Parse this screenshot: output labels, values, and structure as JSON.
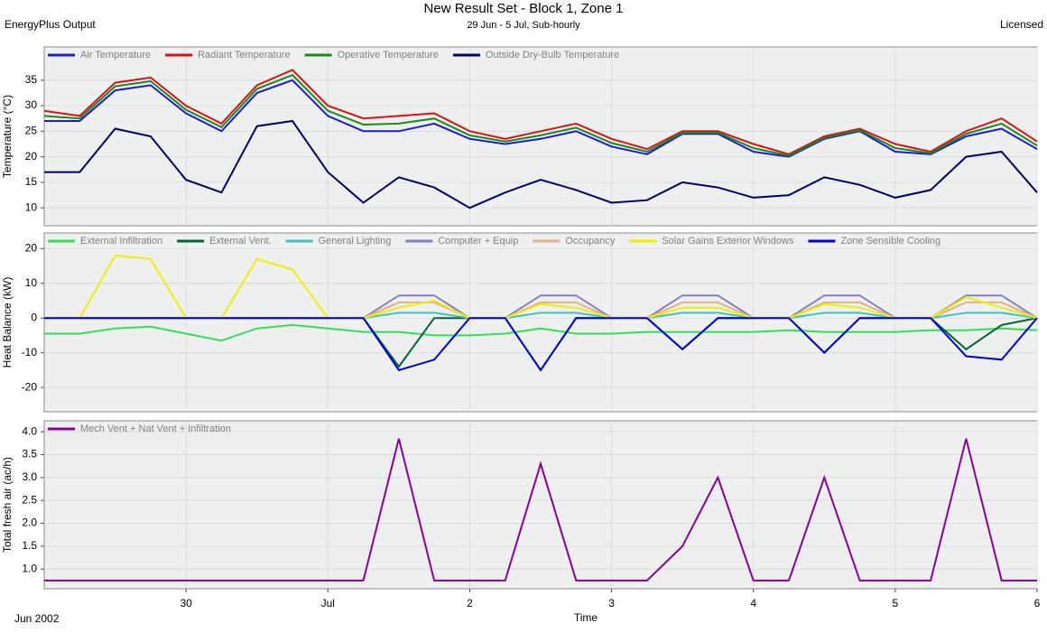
{
  "header": {
    "title": "New Result Set - Block 1, Zone 1",
    "subtitle": "29 Jun - 5 Jul, Sub-hourly",
    "source": "EnergyPlus Output",
    "license": "Licensed"
  },
  "chart_data": [
    {
      "type": "line",
      "ylabel": "Temperature (°C)",
      "legend": "top-left",
      "grid": true,
      "x": [
        29,
        29.25,
        29.5,
        29.75,
        30,
        30.25,
        30.5,
        30.75,
        31,
        31.25,
        31.5,
        31.75,
        32,
        32.25,
        32.5,
        32.75,
        33,
        33.25,
        33.5,
        33.75,
        34,
        34.25,
        34.5,
        34.75,
        35,
        35.25,
        35.5,
        35.75,
        36
      ],
      "xlim": [
        29,
        36
      ],
      "xticks": [
        30,
        31,
        32,
        33,
        34,
        35,
        36
      ],
      "ylim": [
        6.5,
        41.5
      ],
      "yticks": [
        10,
        15,
        20,
        25,
        30,
        35
      ],
      "series": [
        {
          "name": "Air Temperature",
          "color": "#1c1ccc",
          "values": [
            27,
            27,
            33,
            34,
            28.5,
            25,
            32.5,
            35,
            28,
            25,
            25,
            26.5,
            23.5,
            22.5,
            23.5,
            25,
            22,
            20.5,
            24.5,
            24.5,
            21,
            20,
            23.5,
            25,
            21,
            20.5,
            24,
            25.5,
            21.5
          ]
        },
        {
          "name": "Radiant Temperature",
          "color": "#dd1111",
          "values": [
            29,
            28,
            34.5,
            35.5,
            30,
            26.5,
            34,
            37,
            30,
            27.5,
            28,
            28.5,
            25,
            23.5,
            25,
            26.5,
            23.5,
            21.5,
            25,
            25,
            22.5,
            20.5,
            24,
            25.5,
            22.5,
            21,
            25,
            27.5,
            23
          ]
        },
        {
          "name": "Operative Temperature",
          "color": "#1a8a1a",
          "values": [
            28,
            27.5,
            33.8,
            34.8,
            29.2,
            25.8,
            33.3,
            36,
            29,
            26.3,
            26.5,
            27.5,
            24.2,
            23,
            24.2,
            25.7,
            22.7,
            21,
            24.7,
            24.7,
            21.7,
            20.2,
            23.7,
            25.2,
            21.7,
            20.7,
            24.5,
            26.5,
            22.2
          ]
        },
        {
          "name": "Outside Dry-Bulb Temperature",
          "color": "#000066",
          "values": [
            17,
            17,
            25.5,
            24,
            15.5,
            13,
            26,
            27,
            17,
            11,
            16,
            14,
            10,
            13,
            15.5,
            13.5,
            11,
            11.5,
            15,
            14,
            12,
            12.5,
            16,
            14.5,
            12,
            13.5,
            20,
            21,
            13
          ]
        }
      ]
    },
    {
      "type": "line",
      "ylabel": "Heat Balance (kW)",
      "legend": "top-left",
      "grid": true,
      "x": [
        29,
        29.25,
        29.5,
        29.75,
        30,
        30.25,
        30.5,
        30.75,
        31,
        31.25,
        31.5,
        31.75,
        32,
        32.25,
        32.5,
        32.75,
        33,
        33.25,
        33.5,
        33.75,
        34,
        34.25,
        34.5,
        34.75,
        35,
        35.25,
        35.5,
        35.75,
        36
      ],
      "xlim": [
        29,
        36
      ],
      "xticks": [
        30,
        31,
        32,
        33,
        34,
        35,
        36
      ],
      "ylim": [
        -27,
        24.5
      ],
      "yticks": [
        -20,
        -10,
        0,
        10,
        20
      ],
      "series": [
        {
          "name": "External Infiltration",
          "color": "#33dd55",
          "values": [
            -4.5,
            -4.5,
            -3,
            -2.5,
            -4.5,
            -6.5,
            -3,
            -2,
            -3,
            -4,
            -4,
            -5,
            -5,
            -4.5,
            -3,
            -4.5,
            -4.5,
            -4,
            -4,
            -4,
            -4,
            -3.5,
            -4,
            -4,
            -4,
            -3.5,
            -3.5,
            -3,
            -3.5
          ]
        },
        {
          "name": "External Vent.",
          "color": "#006633",
          "values": [
            0,
            0,
            0,
            0,
            0,
            0,
            0,
            0,
            0,
            0,
            -14,
            0,
            0,
            0,
            -15,
            0,
            0,
            0,
            -9,
            0,
            0,
            0,
            -10,
            0,
            0,
            0,
            -9,
            -2,
            0
          ]
        },
        {
          "name": "General Lighting",
          "color": "#40c0c0",
          "values": [
            0,
            0,
            0,
            0,
            0,
            0,
            0,
            0,
            0,
            0,
            1.5,
            1.5,
            0,
            0,
            1.5,
            1.5,
            0,
            0,
            1.5,
            1.5,
            0,
            0,
            1.5,
            1.5,
            0,
            0,
            1.5,
            1.5,
            0
          ]
        },
        {
          "name": "Computer + Equip",
          "color": "#8080c0",
          "values": [
            0,
            0,
            0,
            0,
            0,
            0,
            0,
            0,
            0,
            0,
            6.5,
            6.5,
            0,
            0,
            6.5,
            6.5,
            0,
            0,
            6.5,
            6.5,
            0,
            0,
            6.5,
            6.5,
            0,
            0,
            6.5,
            6.5,
            0
          ]
        },
        {
          "name": "Occupancy",
          "color": "#e0b090",
          "values": [
            0,
            0,
            0,
            0,
            0,
            0,
            0,
            0,
            0,
            0,
            4.5,
            4.5,
            0,
            0,
            4.5,
            4.5,
            0,
            0,
            4.5,
            4.5,
            0,
            0,
            4.5,
            4.5,
            0,
            0,
            4.5,
            4.5,
            0
          ]
        },
        {
          "name": "Solar Gains Exterior Windows",
          "color": "#f0ee00",
          "values": [
            0,
            0,
            18,
            17,
            0,
            0,
            17,
            14,
            0,
            0,
            3,
            5,
            0,
            0,
            4,
            3,
            0,
            0,
            3,
            3,
            0,
            0,
            4,
            3,
            0,
            0,
            6,
            3,
            0
          ]
        },
        {
          "name": "Zone Sensible Cooling",
          "color": "#0000dd",
          "values": [
            0,
            0,
            0,
            0,
            0,
            0,
            0,
            0,
            0,
            0,
            -15,
            -12,
            0,
            0,
            -15,
            0,
            0,
            0,
            -9,
            0,
            0,
            0,
            -10,
            0,
            0,
            0,
            -11,
            -12,
            0
          ]
        }
      ]
    },
    {
      "type": "line",
      "ylabel": "Total fresh air (ac/h)",
      "xlabel": "Time",
      "xaxis_period": "Jun  2002",
      "legend": "top-left",
      "grid": true,
      "x": [
        29,
        29.25,
        29.5,
        29.75,
        30,
        30.25,
        30.5,
        30.75,
        31,
        31.25,
        31.5,
        31.75,
        32,
        32.25,
        32.5,
        32.75,
        33,
        33.25,
        33.5,
        33.75,
        34,
        34.25,
        34.5,
        34.75,
        35,
        35.25,
        35.5,
        35.75,
        36
      ],
      "xlim": [
        29,
        36
      ],
      "xticks": [
        30,
        {
          "value": 31,
          "label": "Jul"
        },
        {
          "value": 32,
          "label": "2"
        },
        {
          "value": 33,
          "label": "3"
        },
        {
          "value": 34,
          "label": "4"
        },
        {
          "value": 35,
          "label": "5"
        },
        {
          "value": 36,
          "label": "6"
        }
      ],
      "ylim": [
        0.57,
        4.24
      ],
      "yticks": [
        {
          "value": 1,
          "label": "1.0"
        },
        1.5,
        {
          "value": 2,
          "label": "2.0"
        },
        2.5,
        {
          "value": 3,
          "label": "3.0"
        },
        3.5,
        {
          "value": 4,
          "label": "4.0"
        }
      ],
      "series": [
        {
          "name": "Mech Vent + Nat Vent + Infiltration",
          "color": "#880099",
          "values": [
            0.75,
            0.75,
            0.75,
            0.75,
            0.75,
            0.75,
            0.75,
            0.75,
            0.75,
            0.75,
            3.85,
            0.75,
            0.75,
            0.75,
            3.3,
            0.75,
            0.75,
            0.75,
            1.5,
            3,
            0.75,
            0.75,
            3,
            0.75,
            0.75,
            0.75,
            3.85,
            0.75,
            0.75
          ]
        }
      ]
    }
  ]
}
